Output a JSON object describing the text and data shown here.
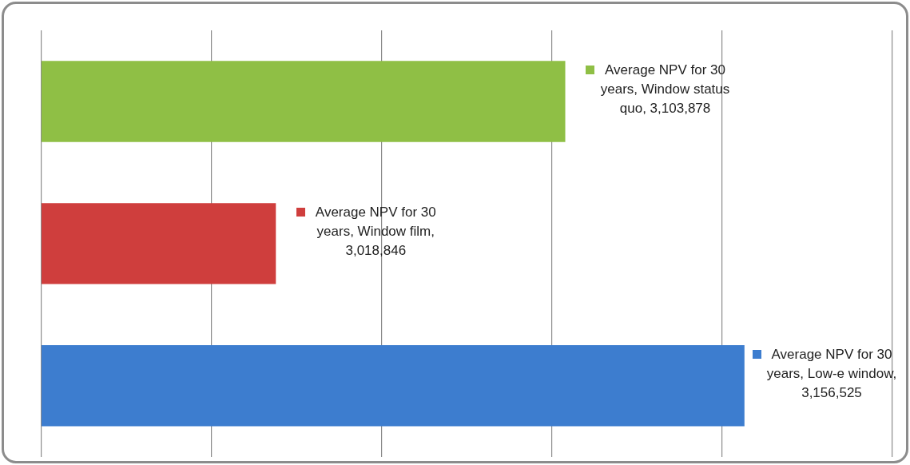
{
  "chart_data": {
    "type": "bar",
    "orientation": "horizontal",
    "categories": [
      null,
      null,
      null
    ],
    "series": [
      {
        "colors": [
          "#8fbf45",
          "#cf3e3d",
          "#3d7dcf"
        ],
        "values": [
          3103878,
          3018846,
          3156525
        ],
        "value_labels": [
          "Average NPV for 30 years, Window status quo, 3,103,878",
          "Average NPV for 30 years, Window film, 3,018,846",
          "Average NPV for 30 years, Low-e window, 3,156,525"
        ]
      }
    ],
    "xlim": [
      2950000,
      3200000
    ],
    "xticks": [
      {
        "value": 2950000,
        "label": null
      },
      {
        "value": 3000000,
        "label": null
      },
      {
        "value": 3050000,
        "label": null
      },
      {
        "value": 3100000,
        "label": null
      },
      {
        "value": 3150000,
        "label": null
      },
      {
        "value": 3200000,
        "label": null
      }
    ],
    "grid": "x",
    "legend": false
  }
}
